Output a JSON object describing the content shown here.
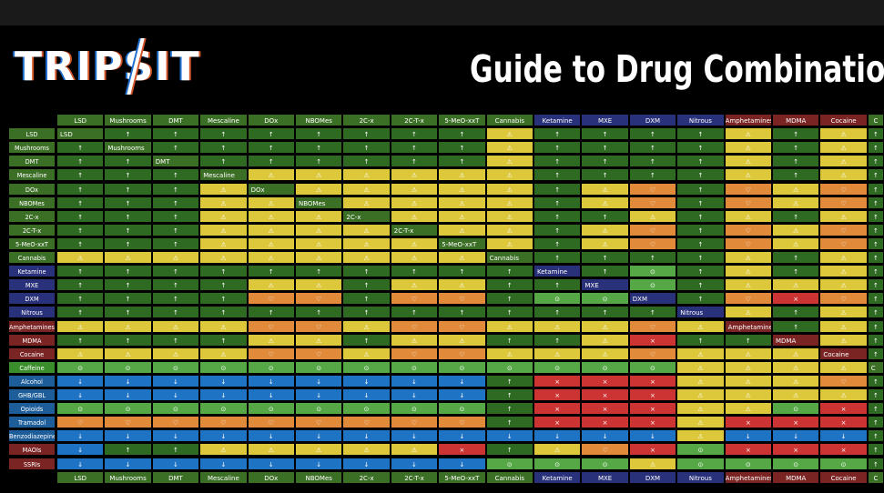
{
  "brand": {
    "logo_text": "TRIPSIT"
  },
  "title": "Guide to Drug Combinations",
  "colors": {
    "header_bg": "#000000",
    "lowrisk_synergy": "#2f6a22",
    "lowrisk_nosynergy": "#55a845",
    "lowrisk_decrease": "#1f73c4",
    "caution": "#dcc83a",
    "unsafe": "#e08a3a",
    "dangerous": "#cc3333",
    "self": "#26307a"
  },
  "matrix": {
    "columns": [
      "LSD",
      "Mushrooms",
      "DMT",
      "Mescaline",
      "DOx",
      "NBOMes",
      "2C-x",
      "2C-T-x",
      "5-MeO-xxT",
      "Cannabis",
      "Ketamine",
      "MXE",
      "DXM",
      "Nitrous",
      "Amphetamines",
      "MDMA",
      "Cocaine",
      "C"
    ],
    "column_colors": [
      "#3c6f26",
      "#3c6f26",
      "#3c6f26",
      "#3c6f26",
      "#3c6f26",
      "#3c6f26",
      "#3c6f26",
      "#3c6f26",
      "#3c6f26",
      "#3c6f26",
      "#29317a",
      "#29317a",
      "#29317a",
      "#29317a",
      "#7b2424",
      "#7b2424",
      "#7b2424",
      "#3c6f26"
    ],
    "rows": [
      {
        "label": "LSD",
        "color": "#3c6f26",
        "cells": "SuuuuuuuuWuuuuWuWu"
      },
      {
        "label": "Mushrooms",
        "color": "#3c6f26",
        "cells": "uSuuuuuuuWuuuuWuWu"
      },
      {
        "label": "DMT",
        "color": "#3c6f26",
        "cells": "uuSuuuuuuWuuuuWuWu"
      },
      {
        "label": "Mescaline",
        "color": "#3c6f26",
        "cells": "uuuSWWWWWWuuuuWuWu"
      },
      {
        "label": "DOx",
        "color": "#3c6f26",
        "cells": "uuuWSWWWWWuWHuHWHu"
      },
      {
        "label": "NBOMes",
        "color": "#3c6f26",
        "cells": "uuuWWSWWWWuWHuHWHu"
      },
      {
        "label": "2C-x",
        "color": "#3c6f26",
        "cells": "uuuWWWSWWWuuWuWuWu"
      },
      {
        "label": "2C-T-x",
        "color": "#3c6f26",
        "cells": "uuuWWWWSWWuWHuHWHu"
      },
      {
        "label": "5-MeO-xxT",
        "color": "#3c6f26",
        "cells": "uuuWWWWWSWuWHuHWHu"
      },
      {
        "label": "Cannabis",
        "color": "#3c6f26",
        "cells": "WWWWWWWWWSuuuuWuWu"
      },
      {
        "label": "Ketamine",
        "color": "#29317a",
        "cells": "uuuuuuuuuuSuOuWuWu"
      },
      {
        "label": "MXE",
        "color": "#29317a",
        "cells": "uuuuWWuWWuuSOuWWWu"
      },
      {
        "label": "DXM",
        "color": "#29317a",
        "cells": "uuuuHHuHHuOOSuHXHu"
      },
      {
        "label": "Nitrous",
        "color": "#29317a",
        "cells": "uuuuuuuuuuuuuSWuWu"
      },
      {
        "label": "Amphetamines",
        "color": "#7b2424",
        "cells": "WWWWHHWHHWWWHWSuWu"
      },
      {
        "label": "MDMA",
        "color": "#7b2424",
        "cells": "uuuuWWuWWuuWXuuSWu"
      },
      {
        "label": "Cocaine",
        "color": "#7b2424",
        "cells": "WWWWHHWHHWWWHWWWSu"
      },
      {
        "label": "Caffeine",
        "color": "#3a8f2c",
        "cells": "oooooooooooooWWWWS"
      },
      {
        "label": "Alcohol",
        "color": "#1c5d9a",
        "cells": "ddddddddduXXXWWWHu"
      },
      {
        "label": "GHB/GBL",
        "color": "#1c5d9a",
        "cells": "ddddddddduXXXWWWWu"
      },
      {
        "label": "Opioids",
        "color": "#1c5d9a",
        "cells": "ooooooooouXXXWWoXu"
      },
      {
        "label": "Tramadol",
        "color": "#1c5d9a",
        "cells": "HHHHHHHHHuXXXWXXXu"
      },
      {
        "label": "Benzodiazepines",
        "color": "#1c5d9a",
        "cells": "dddddddddddddWdddu"
      },
      {
        "label": "MAOIs",
        "color": "#7b2424",
        "cells": "duuWWWWWXuWHXoXXXu"
      },
      {
        "label": "SSRIs",
        "color": "#7b2424",
        "cells": "dddddddddoooWoooou"
      }
    ]
  }
}
